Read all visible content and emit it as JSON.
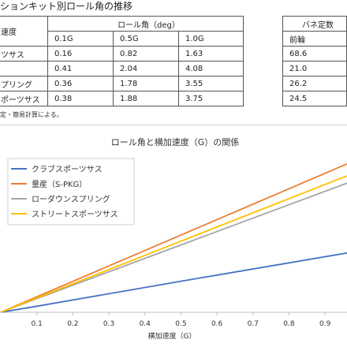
{
  "page_title": "ションキット別ロール角の推移",
  "main_table": {
    "row_header": "速度",
    "group_header": "ロール角（deg）",
    "columns": [
      "0.1G",
      "0.5G",
      "1.0G"
    ],
    "rows": [
      {
        "label": "ツサス",
        "values": [
          "0.16",
          "0.82",
          "1.63"
        ]
      },
      {
        "label": "",
        "values": [
          "0.41",
          "2.04",
          "4.08"
        ]
      },
      {
        "label": "プリング",
        "values": [
          "0.36",
          "1.78",
          "3.55"
        ]
      },
      {
        "label": "ポーツサス",
        "values": [
          "0.38",
          "1.88",
          "3.75"
        ]
      }
    ]
  },
  "spring_table": {
    "group_header": "バネ定数",
    "column": "前輪",
    "values": [
      "68.6",
      "21.0",
      "26.2",
      "24.5"
    ]
  },
  "footnote": "定・簡易計算による。",
  "chart_data": {
    "type": "line",
    "title": "ロール角と横加速度（G）の関係",
    "xlabel": "横加速度（G）",
    "ylabel": "",
    "x": [
      0,
      0.1,
      0.5,
      1.0
    ],
    "x_ticks": [
      "0.1",
      "0.2",
      "0.3",
      "0.4",
      "0.5",
      "0.6",
      "0.7",
      "0.8",
      "0.9"
    ],
    "xlim": [
      0,
      0.95
    ],
    "ylim": [
      0,
      4.0
    ],
    "grid": false,
    "legend_position": "top-left",
    "series": [
      {
        "name": "クラブスポーツサス",
        "color": "#4472c4",
        "values": [
          0,
          0.16,
          0.82,
          1.63
        ]
      },
      {
        "name": "量産（S-PKG）",
        "color": "#ed7d31",
        "values": [
          0,
          0.41,
          2.04,
          4.08
        ]
      },
      {
        "name": "ローダウンスプリング",
        "color": "#a5a5a5",
        "values": [
          0,
          0.36,
          1.78,
          3.55
        ]
      },
      {
        "name": "ストリートスポーツサス",
        "color": "#ffc000",
        "values": [
          0,
          0.38,
          1.88,
          3.75
        ]
      }
    ]
  }
}
